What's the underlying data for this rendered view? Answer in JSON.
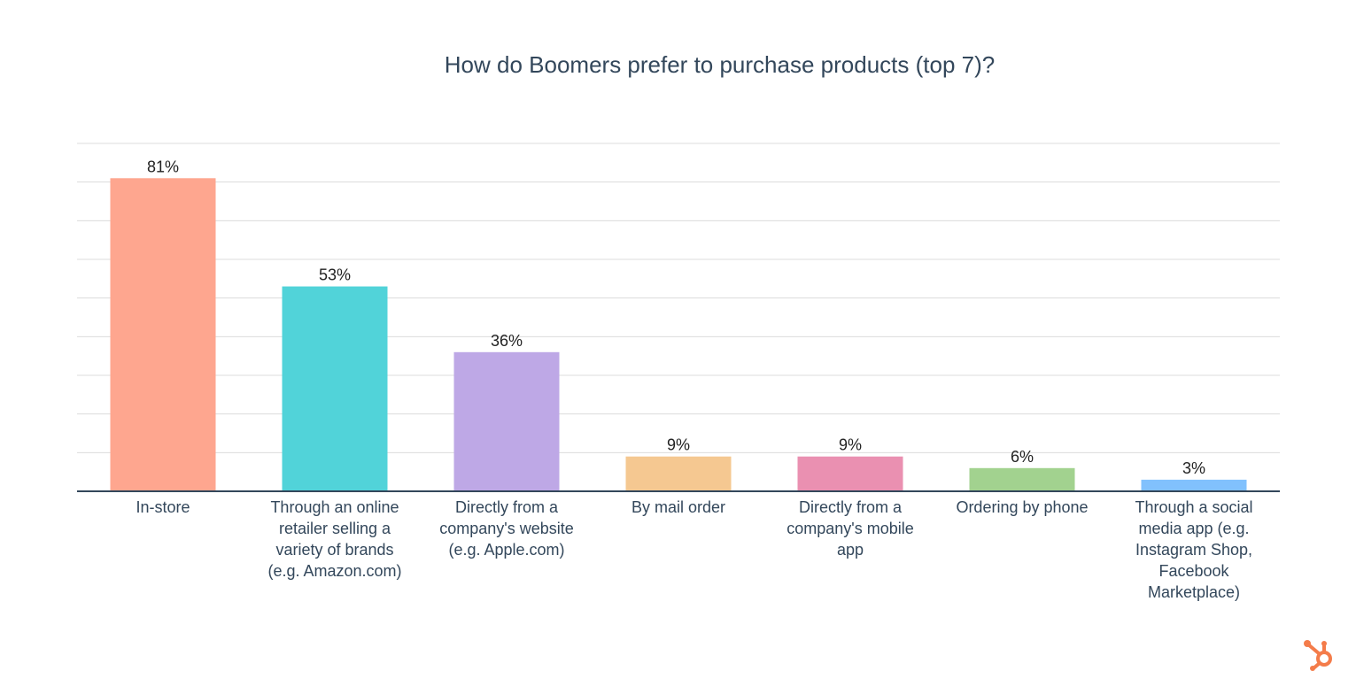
{
  "chart_data": {
    "type": "bar",
    "title": "How do Boomers prefer to purchase products (top 7)?",
    "categories": [
      "In-store",
      "Through an online retailer selling a variety of brands (e.g. Amazon.com)",
      "Directly from a company's website (e.g. Apple.com)",
      "By mail order",
      "Directly from a company's mobile app",
      "Ordering by phone",
      "Through a social media app (e.g. Instagram Shop, Facebook Marketplace)"
    ],
    "category_lines": [
      [
        "In-store"
      ],
      [
        "Through an online",
        "retailer selling a",
        "variety of brands",
        "(e.g. Amazon.com)"
      ],
      [
        "Directly from a",
        "company's website",
        "(e.g. Apple.com)"
      ],
      [
        "By mail order"
      ],
      [
        "Directly from a",
        "company's mobile",
        "app"
      ],
      [
        "Ordering by phone"
      ],
      [
        "Through a social",
        "media app (e.g.",
        "Instagram Shop,",
        "Facebook",
        "Marketplace)"
      ]
    ],
    "values": [
      81,
      53,
      36,
      9,
      9,
      6,
      3
    ],
    "value_labels": [
      "81%",
      "53%",
      "36%",
      "9%",
      "9%",
      "6%",
      "3%"
    ],
    "colors": [
      "#FEA68F",
      "#51D3D9",
      "#BEA8E6",
      "#F5C891",
      "#EA90B1",
      "#A2D28F",
      "#81C1FD"
    ],
    "ylim": [
      0,
      90
    ],
    "grid": true,
    "xlabel": "",
    "ylabel": ""
  },
  "logo": {
    "name": "hubspot-logo",
    "color": "#F47C4A"
  }
}
